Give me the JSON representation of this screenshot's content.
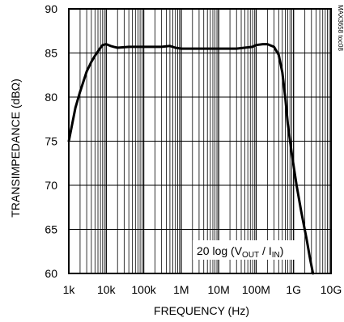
{
  "chart_data": {
    "type": "line",
    "xlabel": "FREQUENCY (Hz)",
    "ylabel": "TRANSIMPEDANCE (dBΩ)",
    "x_scale": "log",
    "xlim": [
      1000,
      10000000000
    ],
    "ylim": [
      60,
      90
    ],
    "x_ticks": [
      1000,
      10000,
      100000,
      1000000,
      10000000,
      100000000,
      1000000000,
      10000000000
    ],
    "x_tick_labels": [
      "1k",
      "10k",
      "100k",
      "1M",
      "10M",
      "100M",
      "1G",
      "10G"
    ],
    "y_ticks": [
      60,
      65,
      70,
      75,
      80,
      85,
      90
    ],
    "y_tick_labels": [
      "60",
      "65",
      "70",
      "75",
      "80",
      "85",
      "90"
    ],
    "grid": true,
    "annotation": {
      "prefix": "20 log (V",
      "sub1": "OUT",
      "mid": " / I",
      "sub2": "IN",
      "suffix": ")"
    },
    "side_label": "MAX3658 toc08",
    "series": [
      {
        "points": [
          [
            1000,
            75.0
          ],
          [
            1500,
            78.8
          ],
          [
            2000,
            80.6
          ],
          [
            3000,
            82.9
          ],
          [
            4000,
            84.0
          ],
          [
            5000,
            84.7
          ],
          [
            6500,
            85.4
          ],
          [
            8000,
            85.9
          ],
          [
            10000,
            86.0
          ],
          [
            13000,
            85.8
          ],
          [
            16000,
            85.7
          ],
          [
            20000,
            85.6
          ],
          [
            40000,
            85.7
          ],
          [
            100000,
            85.7
          ],
          [
            300000,
            85.7
          ],
          [
            500000,
            85.8
          ],
          [
            700000,
            85.6
          ],
          [
            1000000,
            85.5
          ],
          [
            3000000,
            85.5
          ],
          [
            10000000,
            85.5
          ],
          [
            30000000,
            85.5
          ],
          [
            80000000,
            85.7
          ],
          [
            100000000,
            85.9
          ],
          [
            150000000,
            86.0
          ],
          [
            200000000,
            86.0
          ],
          [
            300000000,
            85.7
          ],
          [
            400000000,
            84.8
          ],
          [
            500000000,
            82.8
          ],
          [
            600000000,
            80.0
          ],
          [
            700000000,
            77.0
          ],
          [
            900000000,
            73.5
          ],
          [
            1200000000,
            70.0
          ],
          [
            1600000000,
            67.0
          ],
          [
            2200000000,
            64.0
          ],
          [
            2800000000,
            61.5
          ],
          [
            3300000000,
            60.0
          ]
        ]
      }
    ]
  }
}
